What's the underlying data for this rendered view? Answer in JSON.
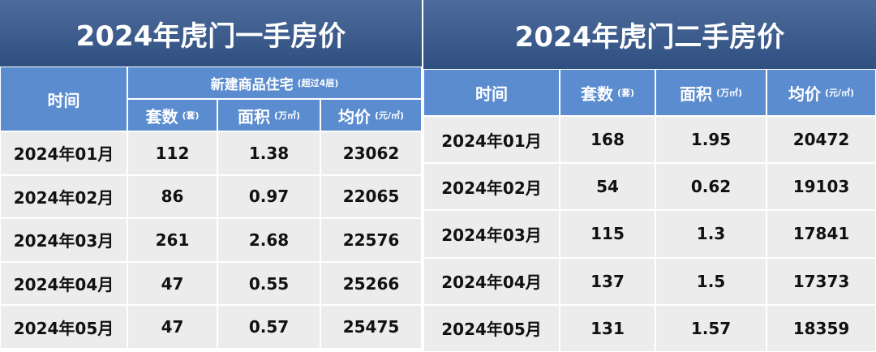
{
  "left": {
    "title": "2024年虎门一手房价",
    "header": {
      "time": "时间",
      "group": "新建商品住宅",
      "group_note": "(超过4层)",
      "columns": [
        {
          "label": "套数",
          "unit": "(套)"
        },
        {
          "label": "面积",
          "unit": "(万㎡)"
        },
        {
          "label": "均价",
          "unit": "(元/㎡)"
        }
      ]
    },
    "rows": [
      [
        "2024年01月",
        "112",
        "1.38",
        "23062"
      ],
      [
        "2024年02月",
        "86",
        "0.97",
        "22065"
      ],
      [
        "2024年03月",
        "261",
        "2.68",
        "22576"
      ],
      [
        "2024年04月",
        "47",
        "0.55",
        "25266"
      ],
      [
        "2024年05月",
        "47",
        "0.57",
        "25475"
      ]
    ]
  },
  "right": {
    "title": "2024年虎门二手房价",
    "header": {
      "time": "时间",
      "columns": [
        {
          "label": "套数",
          "unit": "(套)"
        },
        {
          "label": "面积",
          "unit": "(万㎡)"
        },
        {
          "label": "均价",
          "unit": "(元/㎡)"
        }
      ]
    },
    "rows": [
      [
        "2024年01月",
        "168",
        "1.95",
        "20472"
      ],
      [
        "2024年02月",
        "54",
        "0.62",
        "19103"
      ],
      [
        "2024年03月",
        "115",
        "1.3",
        "17841"
      ],
      [
        "2024年04月",
        "137",
        "1.5",
        "17373"
      ],
      [
        "2024年05月",
        "131",
        "1.57",
        "18359"
      ]
    ]
  }
}
